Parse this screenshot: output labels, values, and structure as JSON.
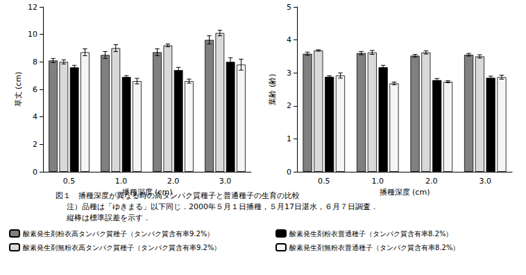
{
  "chart_data": [
    {
      "type": "bar",
      "categories": [
        "0.5",
        "1.0",
        "2.0",
        "3.0"
      ],
      "x_label": "播種深度 (cm)",
      "y_label": "草丈 (cm)",
      "ylim": [
        0,
        12
      ],
      "yticks": [
        0,
        2,
        4,
        6,
        8,
        10,
        12
      ],
      "grid": false,
      "legend": "bottom",
      "series": [
        {
          "name": "酸素発生剤粉衣高タンパク質種子（タンパク質含有率9.2%）",
          "color": "#808080",
          "values": [
            8.1,
            8.5,
            8.7,
            9.6
          ],
          "errors": [
            0.15,
            0.25,
            0.25,
            0.3
          ]
        },
        {
          "name": "酸素発生剤無粉衣高タンパク質種子（タンパク質含有率9.2%）",
          "color": "#d9d9d9",
          "values": [
            8.0,
            9.0,
            9.2,
            10.1
          ],
          "errors": [
            0.15,
            0.25,
            0.1,
            0.2
          ]
        },
        {
          "name": "酸素発生剤粉衣普通種子（タンパク質含有率8.2%）",
          "color": "#000000",
          "values": [
            7.6,
            6.9,
            7.4,
            8.0
          ],
          "errors": [
            0.15,
            0.1,
            0.2,
            0.3
          ]
        },
        {
          "name": "酸素発生剤無粉衣普通種子（タンパク質含有率8.2%）",
          "color": "#f5f5f5",
          "values": [
            8.7,
            6.6,
            6.6,
            7.8
          ],
          "errors": [
            0.25,
            0.2,
            0.15,
            0.4
          ]
        }
      ]
    },
    {
      "type": "bar",
      "categories": [
        "0.5",
        "1.0",
        "2.0",
        "3.0"
      ],
      "x_label": "播種深度 (cm)",
      "y_label": "葉齢 (齢)",
      "ylim": [
        0,
        5
      ],
      "yticks": [
        0,
        1,
        2,
        3,
        4,
        5
      ],
      "grid": false,
      "legend": "bottom",
      "series": [
        {
          "name": "酸素発生剤粉衣高タンパク質種子（タンパク質含有率9.2%）",
          "color": "#808080",
          "values": [
            3.58,
            3.6,
            3.52,
            3.55
          ],
          "errors": [
            0.05,
            0.05,
            0.04,
            0.04
          ]
        },
        {
          "name": "酸素発生剤無粉衣高タンパク質種子（タンパク質含有率9.2%）",
          "color": "#d9d9d9",
          "values": [
            3.68,
            3.62,
            3.62,
            3.5
          ],
          "errors": [
            0.02,
            0.06,
            0.05,
            0.05
          ]
        },
        {
          "name": "酸素発生剤粉衣普通種子（タンパク質含有率8.2%）",
          "color": "#000000",
          "values": [
            2.88,
            3.17,
            2.78,
            2.85
          ],
          "errors": [
            0.03,
            0.06,
            0.05,
            0.05
          ]
        },
        {
          "name": "酸素発生剤無粉衣普通種子（タンパク質含有率8.2%）",
          "color": "#f5f5f5",
          "values": [
            2.92,
            2.68,
            2.73,
            2.87
          ],
          "errors": [
            0.08,
            0.04,
            0.03,
            0.06
          ]
        }
      ]
    }
  ],
  "caption": [
    "図１　播種深度が異なる時の高タンパク質種子と普通種子の生育の比較",
    "注）品種は「ゆきまる」以下同じ．2000年５月１日播種，５月17日湛水，６月７日調査．",
    "縦棒は標準誤差を示す．"
  ]
}
